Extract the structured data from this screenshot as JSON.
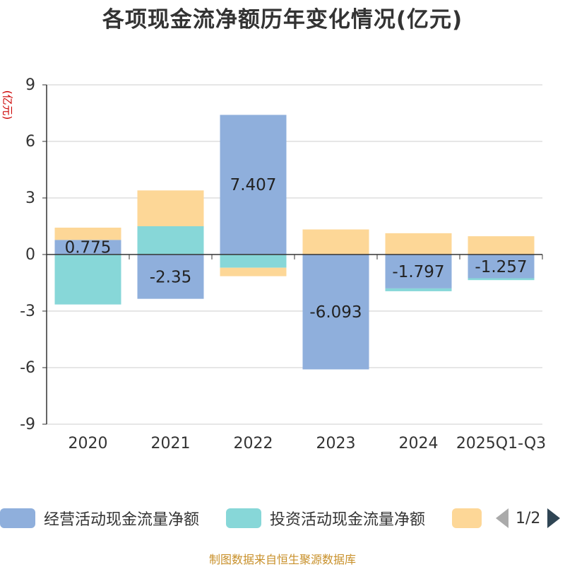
{
  "chart_data": {
    "type": "bar",
    "stacked": true,
    "title": "各项现金流净额历年变化情况(亿元)",
    "ylabel": "(亿元)",
    "xlabel": "",
    "ylim": [
      -9,
      9
    ],
    "yticks": [
      9,
      6,
      3,
      0,
      -3,
      -6,
      -9
    ],
    "categories": [
      "2020",
      "2021",
      "2022",
      "2023",
      "2024",
      "2025Q1-Q3"
    ],
    "series": [
      {
        "name": "经营活动现金流量净额",
        "color": "#8fafdc",
        "values": [
          0.775,
          -2.35,
          7.407,
          -6.093,
          -1.797,
          -1.257
        ],
        "labels": [
          "0.775",
          "-2.35",
          "7.407",
          "-6.093",
          "-1.797",
          "-1.257"
        ]
      },
      {
        "name": "投资活动现金流量净额",
        "color": "#87d7d8",
        "values": [
          -2.65,
          1.5,
          -0.7,
          0,
          -0.15,
          -0.1
        ]
      },
      {
        "name": "",
        "color": "#fdd797",
        "values": [
          0.65,
          1.9,
          -0.45,
          1.33,
          1.13,
          0.97
        ]
      }
    ],
    "legend_position": "bottom"
  },
  "legend_page": "1/2",
  "source": "制图数据来自恒生聚源数据库"
}
